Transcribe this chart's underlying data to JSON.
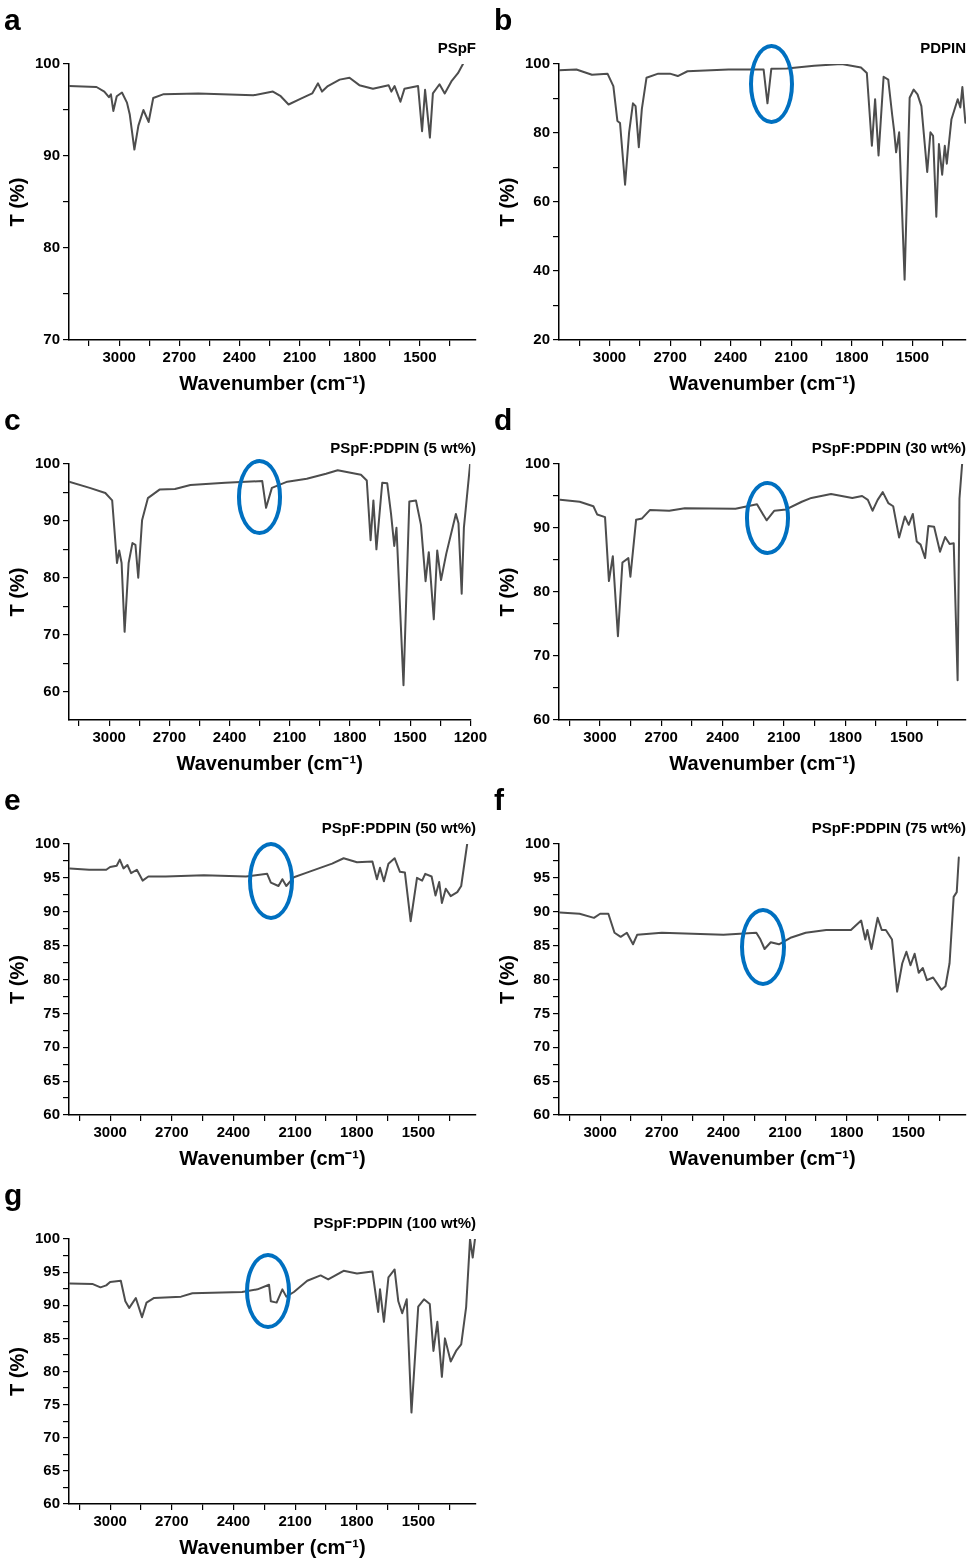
{
  "chart_data": [
    {
      "type": "line",
      "title": "a",
      "subtitle": "PSpF",
      "xlabel": "Wavenumber (cm⁻¹)",
      "ylabel": "T (%)",
      "marker": "none",
      "line_style": "solid",
      "xlim": [
        3250,
        1220
      ],
      "xticks": [
        {
          "value": 3150,
          "label": null
        },
        3000,
        {
          "value": 2850,
          "label": null
        },
        2700,
        {
          "value": 2550,
          "label": null
        },
        2400,
        {
          "value": 2250,
          "label": null
        },
        2100,
        {
          "value": 1950,
          "label": null
        },
        1800,
        {
          "value": 1650,
          "label": null
        },
        1500,
        {
          "value": 1350,
          "label": null
        }
      ],
      "ylim": [
        70,
        100
      ],
      "yticks": [
        70,
        {
          "value": 75,
          "label": null
        },
        80,
        {
          "value": 85,
          "label": null
        },
        90,
        {
          "value": 95,
          "label": null
        },
        100
      ],
      "x": [
        3250,
        3113,
        3074,
        3051,
        3041,
        3029,
        3012,
        2986,
        2961,
        2947,
        2924,
        2904,
        2879,
        2853,
        2830,
        2781,
        2605,
        2331,
        2233,
        2194,
        2155,
        2096,
        2037,
        2008,
        1988,
        1959,
        1900,
        1851,
        1802,
        1734,
        1656,
        1642,
        1626,
        1597,
        1577,
        1509,
        1489,
        1474,
        1450,
        1435,
        1402,
        1376,
        1343,
        1310,
        1285
      ],
      "series": [
        {
          "color": "#4d4d4d",
          "values": [
            97.6,
            97.5,
            97.0,
            96.4,
            96.7,
            94.9,
            96.5,
            96.9,
            95.8,
            94.5,
            90.7,
            93.3,
            95.0,
            93.7,
            96.3,
            96.7,
            96.8,
            96.6,
            97.0,
            96.5,
            95.6,
            96.2,
            96.8,
            97.9,
            97.0,
            97.6,
            98.3,
            98.5,
            97.7,
            97.3,
            97.7,
            97.0,
            97.6,
            95.9,
            97.3,
            97.6,
            92.7,
            97.2,
            92.0,
            96.8,
            97.8,
            96.8,
            98.1,
            99.0,
            100.0
          ]
        }
      ]
    },
    {
      "type": "line",
      "title": "b",
      "subtitle": "PDPIN",
      "xlabel": "Wavenumber (cm⁻¹)",
      "ylabel": "T (%)",
      "marker": "none",
      "line_style": "solid",
      "xlim": [
        3250,
        1235
      ],
      "xticks": [
        {
          "value": 3150,
          "label": null
        },
        3000,
        {
          "value": 2850,
          "label": null
        },
        2700,
        {
          "value": 2550,
          "label": null
        },
        2400,
        {
          "value": 2250,
          "label": null
        },
        2100,
        {
          "value": 1950,
          "label": null
        },
        1800,
        {
          "value": 1650,
          "label": null
        },
        1500,
        {
          "value": 1350,
          "label": null
        }
      ],
      "ylim": [
        20,
        100
      ],
      "yticks": [
        20,
        {
          "value": 30,
          "label": null
        },
        40,
        {
          "value": 50,
          "label": null
        },
        60,
        {
          "value": 70,
          "label": null
        },
        80,
        {
          "value": 90,
          "label": null
        },
        100
      ],
      "x": [
        3250,
        3164,
        3087,
        3010,
        2981,
        2961,
        2948,
        2923,
        2903,
        2884,
        2871,
        2855,
        2840,
        2817,
        2759,
        2701,
        2662,
        2614,
        2411,
        2237,
        2218,
        2199,
        2122,
        1987,
        1851,
        1755,
        1726,
        1701,
        1685,
        1668,
        1643,
        1620,
        1600,
        1591,
        1581,
        1566,
        1539,
        1514,
        1494,
        1475,
        1456,
        1427,
        1411,
        1398,
        1382,
        1369,
        1353,
        1340,
        1330,
        1307,
        1276,
        1263,
        1253,
        1238
      ],
      "series": [
        {
          "color": "#4d4d4d",
          "values": [
            98.2,
            98.4,
            96.9,
            97.2,
            93.6,
            83.5,
            82.9,
            65.0,
            80.2,
            88.6,
            87.8,
            75.9,
            86.9,
            96.0,
            97.2,
            97.2,
            96.5,
            97.9,
            98.4,
            98.4,
            88.6,
            98.6,
            98.7,
            99.5,
            100.0,
            99.0,
            97.4,
            76.3,
            89.8,
            73.5,
            96.3,
            95.5,
            85.0,
            80.7,
            74.4,
            80.2,
            37.5,
            90.2,
            92.6,
            91.2,
            87.8,
            68.7,
            80.2,
            79.2,
            55.7,
            76.8,
            67.9,
            76.3,
            71.1,
            84.0,
            89.8,
            87.4,
            93.3,
            83.0
          ]
        }
      ]
    },
    {
      "type": "line",
      "title": "c",
      "subtitle": "PSpF:PDPIN (5 wt%)",
      "xlabel": "Wavenumber (cm⁻¹)",
      "ylabel": "T (%)",
      "marker": "none",
      "line_style": "solid",
      "xlim": [
        3200,
        1200
      ],
      "xticks": [
        {
          "value": 3150,
          "label": null
        },
        3000,
        {
          "value": 2850,
          "label": null
        },
        2700,
        {
          "value": 2550,
          "label": null
        },
        2400,
        {
          "value": 2250,
          "label": null
        },
        2100,
        {
          "value": 1950,
          "label": null
        },
        1800,
        {
          "value": 1650,
          "label": null
        },
        1500,
        {
          "value": 1350,
          "label": null
        },
        1200
      ],
      "ylim": [
        55,
        100
      ],
      "yticks": [
        60,
        {
          "value": 65,
          "label": null
        },
        70,
        {
          "value": 75,
          "label": null
        },
        80,
        {
          "value": 85,
          "label": null
        },
        90,
        {
          "value": 95,
          "label": null
        },
        100
      ],
      "x": [
        3200,
        3097,
        3019,
        2985,
        2961,
        2950,
        2938,
        2923,
        2903,
        2884,
        2869,
        2855,
        2836,
        2807,
        2749,
        2672,
        2595,
        2421,
        2237,
        2218,
        2189,
        2112,
        2015,
        1919,
        1861,
        1745,
        1716,
        1697,
        1683,
        1668,
        1639,
        1614,
        1595,
        1579,
        1568,
        1533,
        1504,
        1471,
        1446,
        1423,
        1407,
        1382,
        1365,
        1346,
        1320,
        1272,
        1259,
        1243,
        1232,
        1201
      ],
      "series": [
        {
          "color": "#4d4d4d",
          "values": [
            96.9,
            95.8,
            94.9,
            93.6,
            82.6,
            84.8,
            82.6,
            70.5,
            82.6,
            86.1,
            85.8,
            80.0,
            90.1,
            94.0,
            95.5,
            95.6,
            96.3,
            96.7,
            97.0,
            92.3,
            95.8,
            96.9,
            97.4,
            98.3,
            98.9,
            98.1,
            97.1,
            86.6,
            93.6,
            85.0,
            96.7,
            96.6,
            91.2,
            85.6,
            88.8,
            61.1,
            93.4,
            93.6,
            89.3,
            79.4,
            84.5,
            72.7,
            84.8,
            79.6,
            84.2,
            91.2,
            89.6,
            77.2,
            88.8,
            100.0
          ]
        }
      ]
    },
    {
      "type": "line",
      "title": "d",
      "subtitle": "PSpF:PDPIN (30 wt%)",
      "xlabel": "Wavenumber (cm⁻¹)",
      "ylabel": "T (%)",
      "marker": "none",
      "line_style": "solid",
      "xlim": [
        3200,
        1210
      ],
      "xticks": [
        {
          "value": 3150,
          "label": null
        },
        3000,
        {
          "value": 2850,
          "label": null
        },
        2700,
        {
          "value": 2550,
          "label": null
        },
        2400,
        {
          "value": 2250,
          "label": null
        },
        2100,
        {
          "value": 1950,
          "label": null
        },
        1800,
        {
          "value": 1650,
          "label": null
        },
        1500,
        {
          "value": 1350,
          "label": null
        }
      ],
      "ylim": [
        60,
        100
      ],
      "yticks": [
        60,
        {
          "value": 65,
          "label": null
        },
        70,
        {
          "value": 75,
          "label": null
        },
        80,
        {
          "value": 85,
          "label": null
        },
        90,
        {
          "value": 95,
          "label": null
        },
        100
      ],
      "x": [
        3194,
        3099,
        3032,
        3013,
        2975,
        2956,
        2937,
        2912,
        2890,
        2861,
        2851,
        2823,
        2794,
        2756,
        2661,
        2585,
        2337,
        2232,
        2185,
        2147,
        2090,
        2013,
        1966,
        1870,
        1766,
        1718,
        1690,
        1667,
        1642,
        1617,
        1590,
        1566,
        1537,
        1509,
        1490,
        1470,
        1451,
        1432,
        1410,
        1394,
        1366,
        1337,
        1312,
        1290,
        1270,
        1251,
        1242,
        1229
      ],
      "series": [
        {
          "color": "#4d4d4d",
          "values": [
            94.4,
            94.1,
            93.4,
            92.1,
            91.7,
            81.7,
            85.6,
            73.1,
            84.6,
            85.3,
            82.4,
            91.3,
            91.5,
            92.8,
            92.7,
            93.1,
            93.0,
            93.7,
            91.2,
            92.7,
            92.9,
            94.1,
            94.7,
            95.3,
            94.7,
            95.0,
            94.4,
            92.7,
            94.4,
            95.6,
            93.9,
            93.4,
            88.5,
            91.8,
            90.5,
            92.2,
            87.9,
            87.4,
            85.3,
            90.3,
            90.2,
            86.3,
            88.6,
            87.5,
            87.6,
            66.2,
            94.6,
            100.0
          ]
        }
      ]
    },
    {
      "type": "line",
      "title": "e",
      "subtitle": "PSpF:PDPIN (50 wt%)",
      "xlabel": "Wavenumber (cm⁻¹)",
      "ylabel": "T (%)",
      "marker": "none",
      "line_style": "solid",
      "xlim": [
        3200,
        1220
      ],
      "xticks": [
        {
          "value": 3150,
          "label": null
        },
        3000,
        {
          "value": 2850,
          "label": null
        },
        2700,
        {
          "value": 2550,
          "label": null
        },
        2400,
        {
          "value": 2250,
          "label": null
        },
        2100,
        {
          "value": 1950,
          "label": null
        },
        1800,
        {
          "value": 1650,
          "label": null
        },
        1500,
        {
          "value": 1350,
          "label": null
        }
      ],
      "ylim": [
        60,
        100
      ],
      "yticks": [
        60,
        {
          "value": 62.5,
          "label": null
        },
        65,
        {
          "value": 67.5,
          "label": null
        },
        70,
        {
          "value": 72.5,
          "label": null
        },
        75,
        {
          "value": 77.5,
          "label": null
        },
        80,
        {
          "value": 82.5,
          "label": null
        },
        85,
        {
          "value": 87.5,
          "label": null
        },
        90,
        {
          "value": 92.5,
          "label": null
        },
        95,
        {
          "value": 97.5,
          "label": null
        },
        100
      ],
      "x": [
        3196,
        3102,
        3019,
        3000,
        2968,
        2953,
        2935,
        2916,
        2898,
        2870,
        2842,
        2814,
        2730,
        2544,
        2339,
        2236,
        2218,
        2181,
        2162,
        2143,
        2106,
        2050,
        1985,
        1920,
        1864,
        1799,
        1724,
        1702,
        1687,
        1668,
        1646,
        1616,
        1590,
        1566,
        1538,
        1507,
        1482,
        1467,
        1436,
        1417,
        1399,
        1386,
        1367,
        1343,
        1311,
        1292,
        1263
      ],
      "series": [
        {
          "color": "#4d4d4d",
          "values": [
            96.4,
            96.2,
            96.2,
            96.6,
            96.8,
            97.7,
            96.4,
            96.9,
            95.7,
            96.2,
            94.6,
            95.2,
            95.2,
            95.4,
            95.2,
            95.6,
            94.3,
            93.8,
            94.8,
            93.8,
            95.1,
            95.7,
            96.4,
            97.1,
            97.9,
            97.3,
            97.4,
            94.8,
            96.5,
            94.5,
            97.1,
            97.9,
            95.9,
            95.8,
            88.6,
            95.0,
            94.6,
            95.6,
            95.2,
            92.4,
            94.4,
            91.3,
            93.4,
            92.3,
            92.9,
            93.8,
            100.0
          ]
        }
      ]
    },
    {
      "type": "line",
      "title": "f",
      "subtitle": "PSpF:PDPIN (75 wt%)",
      "xlabel": "Wavenumber (cm⁻¹)",
      "ylabel": "T (%)",
      "marker": "none",
      "line_style": "solid",
      "xlim": [
        3200,
        1220
      ],
      "xticks": [
        {
          "value": 3150,
          "label": null
        },
        3000,
        {
          "value": 2850,
          "label": null
        },
        2700,
        {
          "value": 2550,
          "label": null
        },
        2400,
        {
          "value": 2250,
          "label": null
        },
        2100,
        {
          "value": 1950,
          "label": null
        },
        1800,
        {
          "value": 1650,
          "label": null
        },
        1500,
        {
          "value": 1350,
          "label": null
        }
      ],
      "ylim": [
        60,
        100
      ],
      "yticks": [
        60,
        {
          "value": 62.5,
          "label": null
        },
        65,
        {
          "value": 67.5,
          "label": null
        },
        70,
        {
          "value": 72.5,
          "label": null
        },
        75,
        {
          "value": 77.5,
          "label": null
        },
        80,
        {
          "value": 82.5,
          "label": null
        },
        85,
        {
          "value": 87.5,
          "label": null
        },
        90,
        {
          "value": 92.5,
          "label": null
        },
        95,
        {
          "value": 97.5,
          "label": null
        },
        100
      ],
      "x": [
        3196,
        3100,
        3030,
        3000,
        2960,
        2930,
        2900,
        2870,
        2840,
        2820,
        2700,
        2400,
        2240,
        2220,
        2200,
        2170,
        2130,
        2070,
        2000,
        1900,
        1780,
        1730,
        1710,
        1700,
        1680,
        1650,
        1630,
        1610,
        1580,
        1555,
        1530,
        1510,
        1490,
        1470,
        1450,
        1430,
        1410,
        1380,
        1340,
        1320,
        1300,
        1280,
        1265,
        1255
      ],
      "series": [
        {
          "color": "#4d4d4d",
          "values": [
            89.9,
            89.7,
            89.1,
            89.7,
            89.7,
            86.9,
            86.3,
            86.9,
            85.2,
            86.6,
            86.9,
            86.6,
            86.9,
            85.9,
            84.5,
            85.5,
            85.2,
            86.2,
            86.9,
            87.3,
            87.3,
            88.7,
            85.9,
            87.3,
            84.5,
            89.1,
            87.3,
            87.3,
            85.9,
            78.2,
            82.4,
            84.1,
            82.1,
            83.8,
            81.0,
            81.7,
            79.9,
            80.3,
            78.5,
            79.0,
            82.4,
            92.2,
            92.9,
            98.0
          ]
        }
      ]
    },
    {
      "type": "line",
      "title": "g",
      "subtitle": "PSpF:PDPIN (100 wt%)",
      "xlabel": "Wavenumber (cm⁻¹)",
      "ylabel": "T (%)",
      "marker": "none",
      "line_style": "solid",
      "xlim": [
        3200,
        1220
      ],
      "xticks": [
        {
          "value": 3150,
          "label": null
        },
        3000,
        {
          "value": 2850,
          "label": null
        },
        2700,
        {
          "value": 2550,
          "label": null
        },
        2400,
        {
          "value": 2250,
          "label": null
        },
        2100,
        {
          "value": 1950,
          "label": null
        },
        1800,
        {
          "value": 1650,
          "label": null
        },
        1500,
        {
          "value": 1350,
          "label": null
        }
      ],
      "ylim": [
        60,
        100
      ],
      "yticks": [
        60,
        {
          "value": 62.5,
          "label": null
        },
        65,
        {
          "value": 67.5,
          "label": null
        },
        70,
        {
          "value": 72.5,
          "label": null
        },
        75,
        {
          "value": 77.5,
          "label": null
        },
        80,
        {
          "value": 82.5,
          "label": null
        },
        85,
        {
          "value": 87.5,
          "label": null
        },
        90,
        {
          "value": 92.5,
          "label": null
        },
        95,
        {
          "value": 97.5,
          "label": null
        },
        100
      ],
      "x": [
        3196,
        3084,
        3047,
        3019,
        3000,
        2948,
        2926,
        2907,
        2875,
        2845,
        2823,
        2786,
        2655,
        2600,
        2358,
        2283,
        2227,
        2218,
        2190,
        2162,
        2143,
        2106,
        2041,
        1976,
        1939,
        1864,
        1799,
        1724,
        1696,
        1687,
        1668,
        1646,
        1616,
        1598,
        1579,
        1557,
        1534,
        1501,
        1473,
        1445,
        1427,
        1408,
        1386,
        1371,
        1343,
        1315,
        1292,
        1268,
        1249,
        1236,
        1225
      ],
      "series": [
        {
          "color": "#4d4d4d",
          "values": [
            93.3,
            93.2,
            92.7,
            93.0,
            93.5,
            93.7,
            90.6,
            89.6,
            91.1,
            88.2,
            90.4,
            91.1,
            91.3,
            91.8,
            92.0,
            92.4,
            93.1,
            90.6,
            90.4,
            92.4,
            91.3,
            92.0,
            93.7,
            94.5,
            93.9,
            95.2,
            94.8,
            95.1,
            89.0,
            92.4,
            87.5,
            94.2,
            95.4,
            90.6,
            88.8,
            90.9,
            73.8,
            89.8,
            90.9,
            90.2,
            83.1,
            87.5,
            79.2,
            85.0,
            81.5,
            83.2,
            84.1,
            89.7,
            100.0,
            97.2,
            100.0
          ]
        }
      ]
    }
  ]
}
